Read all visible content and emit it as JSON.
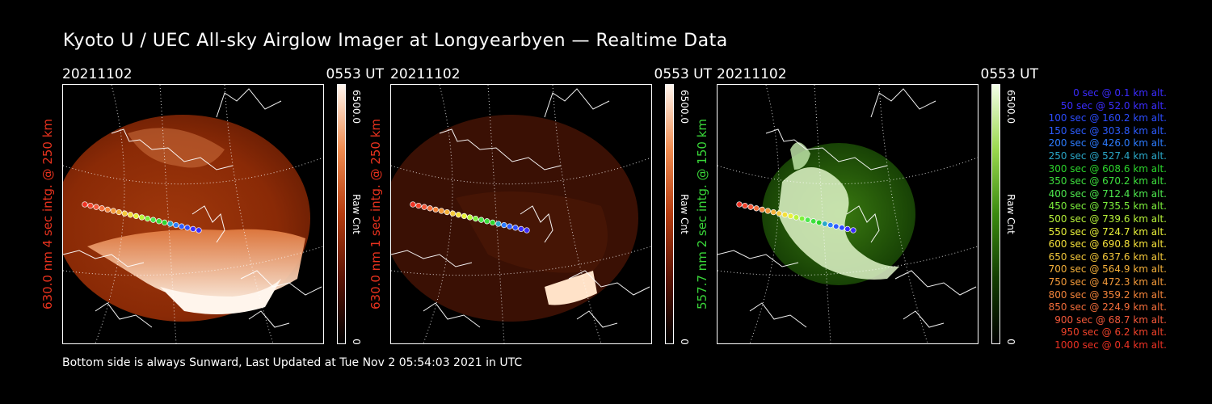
{
  "title": "Kyoto U / UEC All-sky Airglow Imager at Longyearbyen — Realtime Data",
  "footer": "Bottom side is always Sunward, Last Updated at Tue Nov  2 05:54:03 2021 in UTC",
  "panels": [
    {
      "date": "20211102",
      "time": "0553 UT",
      "label": "630.0 nm 4 sec intg. @ 250 km",
      "label_color": "#e8321e",
      "scale_max": "6500.0",
      "scale_min": "0",
      "unit": "Raw Cnt",
      "colormap": "red"
    },
    {
      "date": "20211102",
      "time": "0553 UT",
      "label": "630.0 nm 1 sec intg. @ 250 km",
      "label_color": "#e8321e",
      "scale_max": "6500.0",
      "scale_min": "0",
      "unit": "Raw Cnt",
      "colormap": "red-dim"
    },
    {
      "date": "20211102",
      "time": "0553 UT",
      "label": "557.7 nm 2 sec intg. @ 150 km",
      "label_color": "#39d639",
      "scale_max": "6500.0",
      "scale_min": "0",
      "unit": "Raw Cnt",
      "colormap": "green"
    }
  ],
  "legend": [
    {
      "text": "0 sec @    0.1 km alt.",
      "color": "#3b2cff"
    },
    {
      "text": "50 sec @   52.0 km alt.",
      "color": "#3b2cff"
    },
    {
      "text": "100 sec @  160.2 km alt.",
      "color": "#2c4cff"
    },
    {
      "text": "150 sec @  303.8 km alt.",
      "color": "#2c5cff"
    },
    {
      "text": "200 sec @  426.0 km alt.",
      "color": "#2c7cff"
    },
    {
      "text": "250 sec @  527.4 km alt.",
      "color": "#2aa8c8"
    },
    {
      "text": "300 sec @  608.6 km alt.",
      "color": "#2cd62c"
    },
    {
      "text": "350 sec @  670.2 km alt.",
      "color": "#3ee03e"
    },
    {
      "text": "400 sec @  712.4 km alt.",
      "color": "#4ee84e"
    },
    {
      "text": "450 sec @  735.5 km alt.",
      "color": "#7cf03c"
    },
    {
      "text": "500 sec @  739.6 km alt.",
      "color": "#b8f43a"
    },
    {
      "text": "550 sec @  724.7 km alt.",
      "color": "#e8f03a"
    },
    {
      "text": "600 sec @  690.8 km alt.",
      "color": "#f4e03a"
    },
    {
      "text": "650 sec @  637.6 km alt.",
      "color": "#f4c83a"
    },
    {
      "text": "700 sec @  564.9 km alt.",
      "color": "#f4b03a"
    },
    {
      "text": "750 sec @  472.3 km alt.",
      "color": "#f49a3a"
    },
    {
      "text": "800 sec @  359.2 km alt.",
      "color": "#f4843a"
    },
    {
      "text": "850 sec @  224.9 km alt.",
      "color": "#f46e3a"
    },
    {
      "text": "900 sec @   68.7 km alt.",
      "color": "#f4583a"
    },
    {
      "text": "950 sec @    6.2 km alt.",
      "color": "#f0422a"
    },
    {
      "text": "1000 sec @    0.4 km alt.",
      "color": "#ee3224"
    }
  ]
}
